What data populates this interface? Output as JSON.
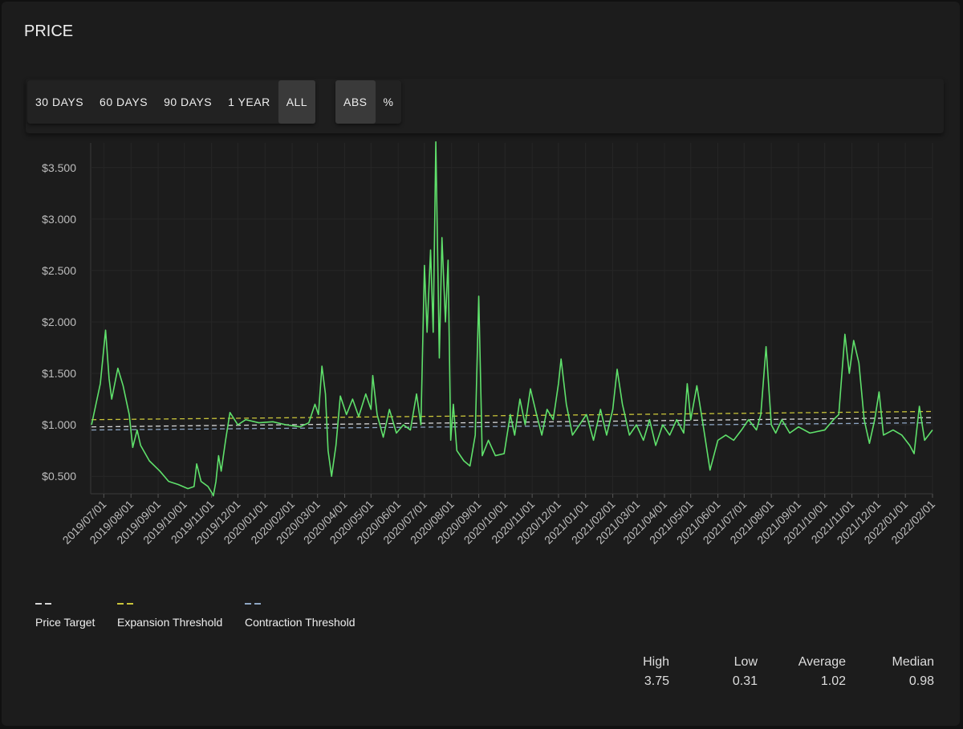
{
  "header": {
    "title": "PRICE"
  },
  "range_buttons": [
    "30 DAYS",
    "60 DAYS",
    "90 DAYS",
    "1 YEAR",
    "ALL"
  ],
  "active_range": 4,
  "mode_buttons": [
    "ABS",
    "%"
  ],
  "active_mode": 0,
  "chart_data": {
    "type": "line",
    "ylim": [
      0.33,
      3.74
    ],
    "yticks": [
      {
        "value": 0.5,
        "label": "$0.500"
      },
      {
        "value": 1,
        "label": "$1.000"
      },
      {
        "value": 1.5,
        "label": "$1.500"
      },
      {
        "value": 2,
        "label": "$2.000"
      },
      {
        "value": 2.5,
        "label": "$2.500"
      },
      {
        "value": 3,
        "label": "$3.000"
      },
      {
        "value": 3.5,
        "label": "$3.500"
      }
    ],
    "xlim": [
      "2019/06/16",
      "2022/02/01"
    ],
    "xticks": [
      "2019/07/01",
      "2019/08/01",
      "2019/09/01",
      "2019/10/01",
      "2019/11/01",
      "2019/12/01",
      "2020/01/01",
      "2020/02/01",
      "2020/03/01",
      "2020/04/01",
      "2020/05/01",
      "2020/06/01",
      "2020/07/01",
      "2020/08/01",
      "2020/09/01",
      "2020/10/01",
      "2020/11/01",
      "2020/12/01",
      "2021/01/01",
      "2021/02/01",
      "2021/03/01",
      "2021/04/01",
      "2021/05/01",
      "2021/06/01",
      "2021/07/01",
      "2021/08/01",
      "2021/09/01",
      "2021/10/01",
      "2021/11/01",
      "2021/12/01",
      "2022/01/01",
      "2022/02/01"
    ],
    "grid": true,
    "legend": "bottom-left",
    "x": [
      "2019/06/17",
      "2019/06/27",
      "2019/07/03",
      "2019/07/07",
      "2019/07/10",
      "2019/07/17",
      "2019/07/23",
      "2019/07/30",
      "2019/08/03",
      "2019/08/08",
      "2019/08/12",
      "2019/08/22",
      "2019/09/03",
      "2019/09/13",
      "2019/09/24",
      "2019/10/05",
      "2019/10/12",
      "2019/10/15",
      "2019/10/20",
      "2019/10/28",
      "2019/11/02",
      "2019/11/03",
      "2019/11/06",
      "2019/11/09",
      "2019/11/12",
      "2019/11/17",
      "2019/11/22",
      "2019/12/01",
      "2019/12/10",
      "2019/12/25",
      "2020/01/10",
      "2020/01/25",
      "2020/02/10",
      "2020/02/20",
      "2020/02/27",
      "2020/03/02",
      "2020/03/06",
      "2020/03/10",
      "2020/03/13",
      "2020/03/17",
      "2020/03/22",
      "2020/03/27",
      "2020/04/03",
      "2020/04/10",
      "2020/04/17",
      "2020/04/25",
      "2020/05/01",
      "2020/05/03",
      "2020/05/08",
      "2020/05/15",
      "2020/05/22",
      "2020/05/30",
      "2020/06/07",
      "2020/06/15",
      "2020/06/22",
      "2020/06/27",
      "2020/07/01",
      "2020/07/04",
      "2020/07/08",
      "2020/07/11",
      "2020/07/14",
      "2020/07/18",
      "2020/07/21",
      "2020/07/25",
      "2020/07/28",
      "2020/07/31",
      "2020/08/03",
      "2020/08/07",
      "2020/08/15",
      "2020/08/22",
      "2020/08/28",
      "2020/09/01",
      "2020/09/05",
      "2020/09/12",
      "2020/09/20",
      "2020/09/30",
      "2020/10/07",
      "2020/10/12",
      "2020/10/18",
      "2020/10/24",
      "2020/10/30",
      "2020/11/06",
      "2020/11/12",
      "2020/11/18",
      "2020/11/25",
      "2020/12/01",
      "2020/12/04",
      "2020/12/10",
      "2020/12/17",
      "2020/12/25",
      "2021/01/02",
      "2021/01/10",
      "2021/01/18",
      "2021/01/25",
      "2021/02/01",
      "2021/02/06",
      "2021/02/12",
      "2021/02/20",
      "2021/02/28",
      "2021/03/08",
      "2021/03/15",
      "2021/03/22",
      "2021/03/30",
      "2021/04/07",
      "2021/04/15",
      "2021/04/23",
      "2021/04/27",
      "2021/05/01",
      "2021/05/08",
      "2021/05/16",
      "2021/05/23",
      "2021/06/01",
      "2021/06/10",
      "2021/06/19",
      "2021/06/28",
      "2021/07/06",
      "2021/07/15",
      "2021/07/20",
      "2021/07/26",
      "2021/08/01",
      "2021/08/06",
      "2021/08/13",
      "2021/08/22",
      "2021/09/01",
      "2021/09/14",
      "2021/10/01",
      "2021/10/11",
      "2021/10/17",
      "2021/10/24",
      "2021/10/29",
      "2021/11/03",
      "2021/11/09",
      "2021/11/15",
      "2021/11/21",
      "2021/11/27",
      "2021/12/02",
      "2021/12/07",
      "2021/12/18",
      "2021/12/28",
      "2022/01/06",
      "2022/01/11",
      "2022/01/17",
      "2022/01/23",
      "2022/02/01"
    ],
    "price": {
      "color": "#5fe06b",
      "values": [
        1.0,
        1.4,
        1.92,
        1.45,
        1.25,
        1.55,
        1.38,
        1.1,
        0.78,
        0.95,
        0.8,
        0.65,
        0.55,
        0.45,
        0.42,
        0.38,
        0.4,
        0.62,
        0.45,
        0.4,
        0.33,
        0.31,
        0.45,
        0.7,
        0.55,
        0.85,
        1.12,
        1.0,
        1.05,
        1.02,
        1.03,
        1.0,
        0.98,
        1.02,
        1.2,
        1.1,
        1.57,
        1.3,
        0.75,
        0.5,
        0.8,
        1.28,
        1.1,
        1.25,
        1.08,
        1.3,
        1.15,
        1.48,
        1.1,
        0.88,
        1.15,
        0.92,
        1.0,
        0.95,
        1.3,
        1.0,
        2.55,
        1.9,
        2.7,
        1.9,
        3.75,
        1.65,
        2.82,
        2.0,
        2.6,
        0.85,
        1.2,
        0.75,
        0.65,
        0.6,
        0.9,
        2.25,
        0.7,
        0.85,
        0.7,
        0.72,
        1.1,
        0.9,
        1.25,
        1.0,
        1.35,
        1.1,
        0.9,
        1.15,
        1.05,
        1.4,
        1.64,
        1.2,
        0.9,
        1.0,
        1.1,
        0.85,
        1.15,
        0.9,
        1.15,
        1.54,
        1.2,
        0.9,
        1.0,
        0.85,
        1.05,
        0.8,
        1.0,
        0.9,
        1.05,
        0.92,
        1.4,
        1.05,
        1.38,
        0.95,
        0.56,
        0.85,
        0.9,
        0.85,
        0.95,
        1.05,
        0.95,
        1.1,
        1.76,
        1.0,
        0.92,
        1.05,
        0.92,
        0.98,
        0.92,
        0.95,
        1.05,
        1.1,
        1.88,
        1.5,
        1.82,
        1.6,
        1.05,
        0.82,
        1.05,
        1.32,
        0.9,
        0.95,
        0.9,
        0.8,
        0.72,
        1.18,
        0.85,
        0.95
      ]
    },
    "series": [
      {
        "name": "Price Target",
        "color": "#d6d6d6",
        "x": [
          "2019/06/17",
          "2022/02/01"
        ],
        "values": [
          0.98,
          1.07
        ]
      },
      {
        "name": "Expansion Threshold",
        "color": "#c9c43a",
        "x": [
          "2019/06/17",
          "2022/02/01"
        ],
        "values": [
          1.05,
          1.13
        ]
      },
      {
        "name": "Contraction Threshold",
        "color": "#8ea6c4",
        "x": [
          "2019/06/17",
          "2022/02/01"
        ],
        "values": [
          0.95,
          1.02
        ]
      }
    ]
  },
  "stats": {
    "labels": [
      "High",
      "Low",
      "Average",
      "Median"
    ],
    "values": [
      3.75,
      0.31,
      1.02,
      0.98
    ]
  }
}
